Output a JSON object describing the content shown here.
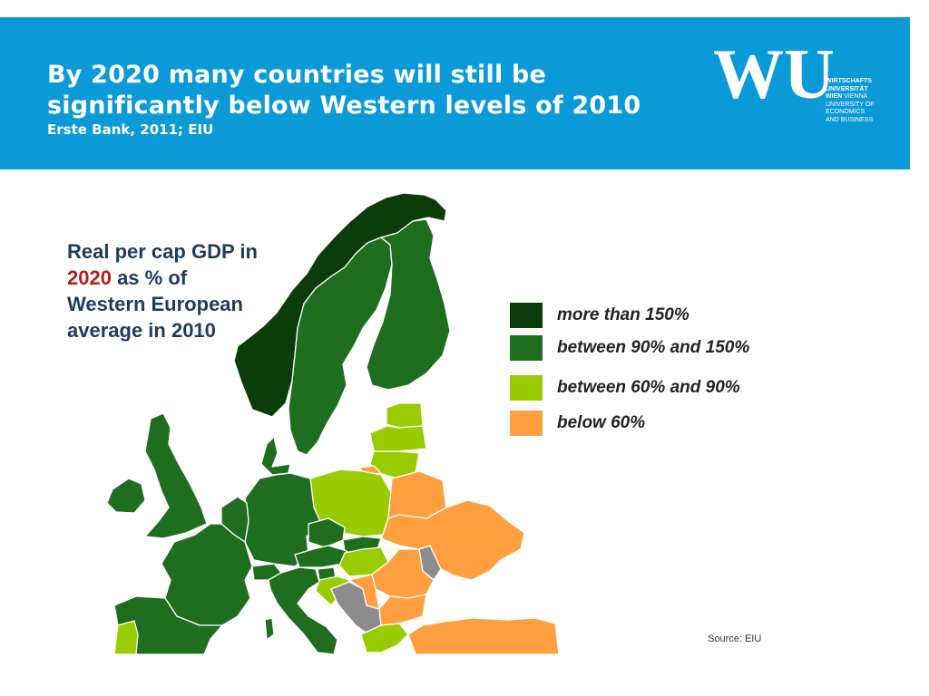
{
  "slide": {
    "title_line1": "By 2020 many countries will still be",
    "title_line2": "significantly below Western levels of 2010",
    "subtitle": "Erste Bank, 2011; EIU"
  },
  "logo": {
    "mark": "WU",
    "line1": "WIRTSCHAFTS",
    "line2": "UNIVERSITÄT",
    "line3a": "WIEN",
    "line3b": " VIENNA",
    "line4": "UNIVERSITY OF",
    "line5": "ECONOMICS",
    "line6": "AND BUSINESS"
  },
  "map": {
    "heading_line1": "Real per cap GDP in",
    "heading_year": "2020",
    "heading_line2_rest": " as % of",
    "heading_line3": "Western European",
    "heading_line4": "average in 2010",
    "source": "Source: EIU"
  },
  "legend": [
    {
      "label": "more than 150%",
      "color": "#0b3d0b"
    },
    {
      "label": "between 90% and 150%",
      "color": "#1f6e1f"
    },
    {
      "label": "between 60% and 90%",
      "color": "#99cc00"
    },
    {
      "label": "below 60%",
      "color": "#ff9f40"
    }
  ],
  "colors": {
    "header_blue": "#0a9ad8",
    "no_data": "#8c8c8c"
  }
}
